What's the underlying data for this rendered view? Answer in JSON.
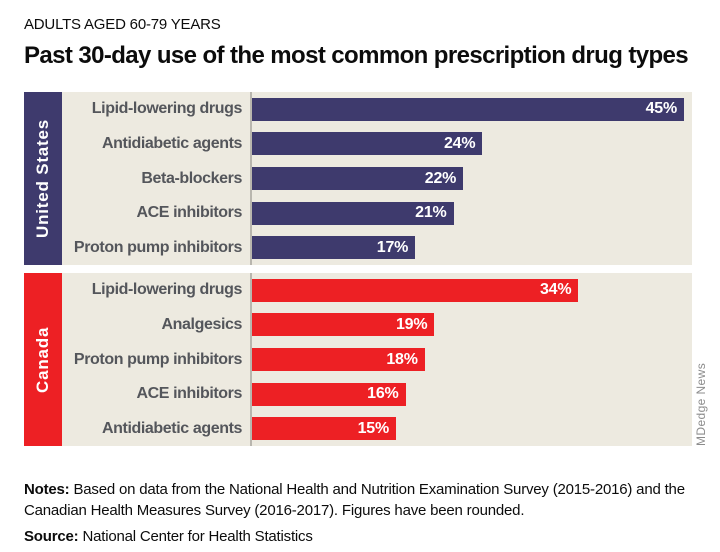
{
  "header": {
    "eyebrow": "ADULTS AGED 60-79 YEARS",
    "title": "Past 30-day use of the most common prescription drug types"
  },
  "chart_data": {
    "type": "bar",
    "orientation": "horizontal",
    "unit": "%",
    "xlim": [
      0,
      46
    ],
    "grid": false,
    "legend": "none",
    "groups": [
      {
        "label": "United States",
        "color": "#3e3a6d",
        "categories": [
          "Lipid-lowering drugs",
          "Antidiabetic agents",
          "Beta-blockers",
          "ACE inhibitors",
          "Proton pump inhibitors"
        ],
        "values": [
          45,
          24,
          22,
          21,
          17
        ],
        "value_labels": [
          "45%",
          "24%",
          "22%",
          "21%",
          "17%"
        ]
      },
      {
        "label": "Canada",
        "color": "#ed2024",
        "categories": [
          "Lipid-lowering drugs",
          "Analgesics",
          "Proton pump inhibitors",
          "ACE inhibitors",
          "Antidiabetic agents"
        ],
        "values": [
          34,
          19,
          18,
          16,
          15
        ],
        "value_labels": [
          "34%",
          "19%",
          "18%",
          "16%",
          "15%"
        ]
      }
    ]
  },
  "footer": {
    "notes_label": "Notes:",
    "notes_text": "Based on data from the National Health and Nutrition Examination Survey (2015-2016) and the Canadian Health Measures Survey (2016-2017). Figures have been rounded.",
    "source_label": "Source:",
    "source_text": "National Center for Health Statistics"
  },
  "credit": "MDedge News",
  "colors": {
    "us_navy": "#3e3a6d",
    "canada_red": "#ed2024",
    "plot_background": "#edeae0",
    "axis_line": "#b9b6ae",
    "category_text": "#54565b",
    "value_text": "#ffffff",
    "credit_text": "#8c8c8c"
  }
}
